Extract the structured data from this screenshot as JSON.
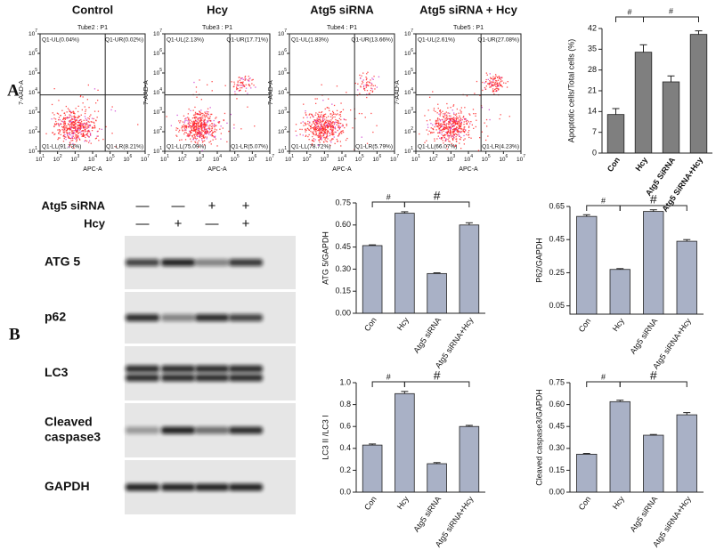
{
  "panel_labels": {
    "a": "A",
    "b": "B"
  },
  "flow_panels": {
    "axis_base": "10",
    "axis_exponents": [
      1,
      2,
      3,
      4,
      5,
      6,
      7
    ],
    "x_label": "APC-A",
    "y_label": "7-AAD-A",
    "panels": [
      {
        "title": "Control",
        "tube": "Tube2 : P1",
        "quadrants": {
          "ul": "Q1-UL(0.04%)",
          "ur": "Q1-UR(0.02%)",
          "ll": "Q1-LL(91.73%)",
          "lr": "Q1-LR(8.21%)"
        }
      },
      {
        "title": "Hcy",
        "tube": "Tube3 : P1",
        "quadrants": {
          "ul": "Q1-UL(2.13%)",
          "ur": "Q1-UR(17.71%)",
          "ll": "Q1-LL(75.09%)",
          "lr": "Q1-LR(5.07%)"
        }
      },
      {
        "title": "Atg5 siRNA",
        "tube": "Tube4 : P1",
        "quadrants": {
          "ul": "Q1-UL(1.83%)",
          "ur": "Q1-UR(13.66%)",
          "ll": "Q1-LL(78.72%)",
          "lr": "Q1-LR(5.79%)"
        }
      },
      {
        "title": "Atg5 siRNA + Hcy",
        "tube": "Tube5 : P1",
        "quadrants": {
          "ul": "Q1-UL(2.61%)",
          "ur": "Q1-UR(27.08%)",
          "ll": "Q1-LL(66.07%)",
          "lr": "Q1-LR(4.23%)"
        }
      }
    ]
  },
  "western_blot": {
    "conditions": [
      {
        "label": "Atg5 siRNA",
        "signs": [
          "—",
          "—",
          "+",
          "+"
        ]
      },
      {
        "label": "Hcy",
        "signs": [
          "—",
          "+",
          "—",
          "+"
        ]
      }
    ],
    "bands": [
      [
        "ATG 5"
      ],
      [
        "p62"
      ],
      [
        "LC3"
      ],
      [
        "Cleaved",
        "caspase3"
      ],
      [
        "GAPDH"
      ]
    ]
  },
  "chart_data": [
    {
      "type": "bar",
      "y_label": "Apoptotic cells/Total cells (%)",
      "categories": [
        "Con",
        "Hcy",
        "Atg5 SiRNA",
        "Atg5 SiRNA+Hcy"
      ],
      "values": [
        13,
        34,
        24,
        40
      ],
      "errors": [
        2,
        2.5,
        2,
        1.2
      ],
      "color": "#7f7f7f",
      "ylim": [
        0,
        42
      ],
      "yticks": [
        0,
        7,
        14,
        21,
        28,
        35,
        42
      ],
      "significance": [
        "#",
        "#"
      ]
    },
    {
      "type": "bar",
      "y_label": "ATG 5/GAPDH",
      "categories": [
        "Con",
        "Hcy",
        "Atg5 siRNA",
        "Atg5 siRNA+Hcy"
      ],
      "values": [
        0.46,
        0.68,
        0.27,
        0.6
      ],
      "errors": [
        0.005,
        0.01,
        0.005,
        0.015
      ],
      "color": "#a9b1c6",
      "ylim": [
        0,
        0.75
      ],
      "yticks": [
        {
          "value": 0,
          "label": "0.00"
        },
        0.15,
        {
          "value": 0.3,
          "label": "0.30"
        },
        0.45,
        {
          "value": 0.6,
          "label": "0.60"
        },
        0.75
      ],
      "significance": [
        "#",
        "#"
      ]
    },
    {
      "type": "bar",
      "y_label": "P62/GAPDH",
      "categories": [
        "Con",
        "Hcy",
        "Atg5 siRNA",
        "Atg5 siRNA+Hcy"
      ],
      "values": [
        0.59,
        0.27,
        0.62,
        0.44
      ],
      "errors": [
        0.01,
        0.005,
        0.01,
        0.01
      ],
      "color": "#a9b1c6",
      "ylim": [
        0,
        0.65
      ],
      "yticks": [
        0.05,
        0.25,
        0.45,
        0.65
      ],
      "significance": [
        "#",
        "#"
      ]
    },
    {
      "type": "bar",
      "y_label": "LC3 II /LC3 I",
      "categories": [
        "Con",
        "Hcy",
        "Atg5 siRNA",
        "Atg5 siRNA+Hcy"
      ],
      "values": [
        0.43,
        0.9,
        0.26,
        0.6
      ],
      "errors": [
        0.01,
        0.02,
        0.01,
        0.01
      ],
      "color": "#a9b1c6",
      "ylim": [
        0,
        1
      ],
      "yticks": [
        {
          "value": 0,
          "label": "0.0"
        },
        0.2,
        0.4,
        0.6,
        0.8,
        {
          "value": 1,
          "label": "1.0"
        }
      ],
      "significance": [
        "#",
        "#"
      ]
    },
    {
      "type": "bar",
      "y_label": "Cleaved caspase3/GAPDH",
      "categories": [
        "Con",
        "Hcy",
        "Atg5 siRNA",
        "Atg5 siRNA+Hcy"
      ],
      "values": [
        0.26,
        0.62,
        0.39,
        0.53
      ],
      "errors": [
        0.005,
        0.01,
        0.005,
        0.015
      ],
      "color": "#a9b1c6",
      "ylim": [
        0,
        0.75
      ],
      "yticks": [
        {
          "value": 0,
          "label": "0.00"
        },
        0.15,
        {
          "value": 0.3,
          "label": "0.30"
        },
        0.45,
        {
          "value": 0.6,
          "label": "0.60"
        },
        0.75
      ],
      "significance": [
        "#",
        "#"
      ]
    }
  ]
}
